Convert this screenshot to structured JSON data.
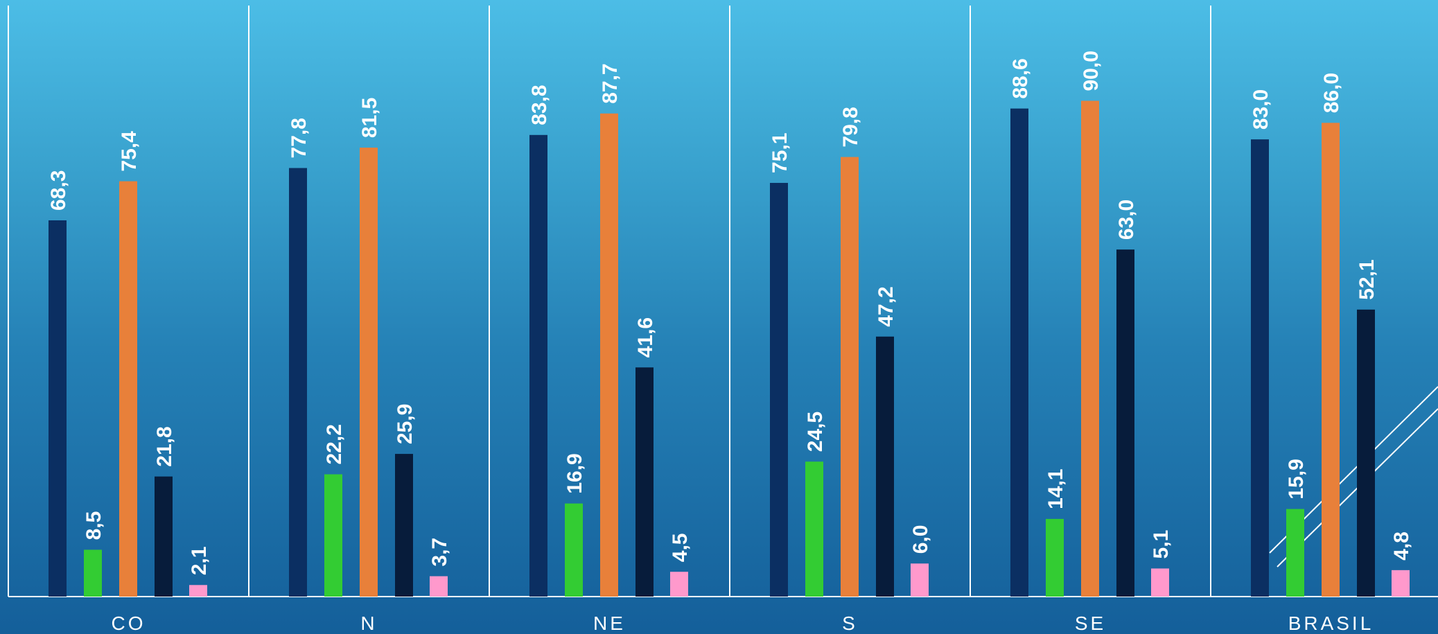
{
  "chart_data": {
    "type": "bar",
    "categories": [
      "CO",
      "N",
      "NE",
      "S",
      "SE",
      "BRASIL"
    ],
    "series": [
      {
        "values": [
          68.3,
          77.8,
          83.8,
          75.1,
          88.6,
          83.0
        ],
        "color": "#0b2f62"
      },
      {
        "values": [
          8.5,
          22.2,
          16.9,
          24.5,
          14.1,
          15.9
        ],
        "color": "#33cc33"
      },
      {
        "values": [
          75.4,
          81.5,
          87.7,
          79.8,
          90.0,
          86.0
        ],
        "color": "#e8803a"
      },
      {
        "values": [
          21.8,
          25.9,
          41.6,
          47.2,
          63.0,
          52.1
        ],
        "color": "#071c3b"
      },
      {
        "values": [
          2.1,
          3.7,
          4.5,
          6.0,
          5.1,
          4.8
        ],
        "color": "#ff99cc"
      }
    ],
    "value_labels": [
      [
        "68,3",
        "77,8",
        "83,8",
        "75,1",
        "88,6",
        "83,0"
      ],
      [
        "8,5",
        "22,2",
        "16,9",
        "24,5",
        "14,1",
        "15,9"
      ],
      [
        "75,4",
        "81,5",
        "87,7",
        "79,8",
        "90,0",
        "86,0"
      ],
      [
        "21,8",
        "25,9",
        "41,6",
        "47,2",
        "63,0",
        "52,1"
      ],
      [
        "2,1",
        "3,7",
        "4,5",
        "6,0",
        "5,1",
        "4,8"
      ]
    ],
    "ylim": [
      0,
      100
    ],
    "grid": false,
    "legend": "none",
    "title": "",
    "xlabel": "",
    "ylabel": ""
  }
}
